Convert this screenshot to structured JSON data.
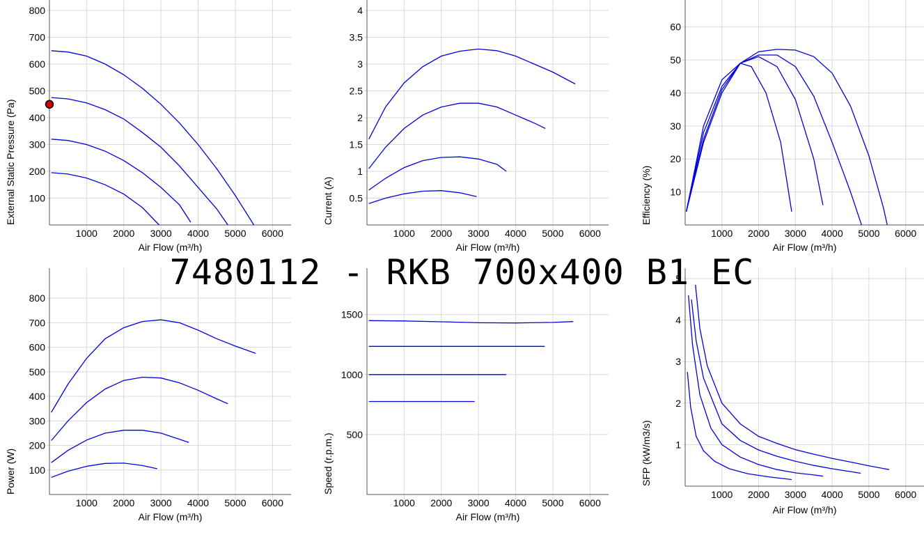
{
  "title": "7480112 - RKB 700x400 B1 EC",
  "colors": {
    "curve": "#0000dd",
    "grid": "#d9d9d9",
    "point_fill": "#cc0000"
  },
  "chart_data": [
    {
      "type": "line",
      "xlabel": "Air Flow (m³/h)",
      "ylabel": "External Static Pressure (Pa)",
      "xlim": [
        0,
        6500
      ],
      "ylim": [
        0,
        800
      ],
      "xticks": [
        1000,
        2000,
        3000,
        4000,
        5000,
        6000
      ],
      "yticks": [
        100,
        200,
        300,
        400,
        500,
        600,
        700,
        800
      ],
      "grid": true,
      "operating_point": {
        "x": 0,
        "y": 450
      },
      "series": [
        {
          "points": [
            [
              50,
              650
            ],
            [
              500,
              645
            ],
            [
              1000,
              630
            ],
            [
              1500,
              600
            ],
            [
              2000,
              560
            ],
            [
              2500,
              510
            ],
            [
              3000,
              450
            ],
            [
              3500,
              380
            ],
            [
              4000,
              300
            ],
            [
              4500,
              210
            ],
            [
              5000,
              110
            ],
            [
              5500,
              0
            ]
          ]
        },
        {
          "points": [
            [
              50,
              475
            ],
            [
              500,
              470
            ],
            [
              1000,
              455
            ],
            [
              1500,
              430
            ],
            [
              2000,
              395
            ],
            [
              2500,
              345
            ],
            [
              3000,
              290
            ],
            [
              3500,
              220
            ],
            [
              4000,
              140
            ],
            [
              4500,
              60
            ],
            [
              4800,
              0
            ]
          ]
        },
        {
          "points": [
            [
              50,
              320
            ],
            [
              500,
              315
            ],
            [
              1000,
              300
            ],
            [
              1500,
              275
            ],
            [
              2000,
              240
            ],
            [
              2500,
              195
            ],
            [
              3000,
              140
            ],
            [
              3500,
              75
            ],
            [
              3800,
              10
            ]
          ]
        },
        {
          "points": [
            [
              50,
              195
            ],
            [
              500,
              190
            ],
            [
              1000,
              175
            ],
            [
              1500,
              150
            ],
            [
              2000,
              115
            ],
            [
              2500,
              65
            ],
            [
              2950,
              0
            ]
          ]
        }
      ]
    },
    {
      "type": "line",
      "xlabel": "Air Flow (m³/h)",
      "ylabel": "Current (A)",
      "xlim": [
        0,
        6500
      ],
      "ylim": [
        0,
        4
      ],
      "xticks": [
        1000,
        2000,
        3000,
        4000,
        5000,
        6000
      ],
      "yticks": [
        0.5,
        1,
        1.5,
        2,
        2.5,
        3,
        3.5,
        4
      ],
      "grid": true,
      "series": [
        {
          "points": [
            [
              50,
              1.6
            ],
            [
              500,
              2.2
            ],
            [
              1000,
              2.65
            ],
            [
              1500,
              2.95
            ],
            [
              2000,
              3.15
            ],
            [
              2500,
              3.24
            ],
            [
              3000,
              3.28
            ],
            [
              3500,
              3.25
            ],
            [
              4000,
              3.15
            ],
            [
              4500,
              3.0
            ],
            [
              5000,
              2.85
            ],
            [
              5600,
              2.63
            ]
          ]
        },
        {
          "points": [
            [
              50,
              1.05
            ],
            [
              500,
              1.45
            ],
            [
              1000,
              1.8
            ],
            [
              1500,
              2.05
            ],
            [
              2000,
              2.2
            ],
            [
              2500,
              2.27
            ],
            [
              3000,
              2.27
            ],
            [
              3500,
              2.2
            ],
            [
              4000,
              2.05
            ],
            [
              4500,
              1.9
            ],
            [
              4800,
              1.8
            ]
          ]
        },
        {
          "points": [
            [
              50,
              0.65
            ],
            [
              500,
              0.87
            ],
            [
              1000,
              1.07
            ],
            [
              1500,
              1.2
            ],
            [
              2000,
              1.26
            ],
            [
              2500,
              1.27
            ],
            [
              3000,
              1.23
            ],
            [
              3500,
              1.13
            ],
            [
              3750,
              1.0
            ]
          ]
        },
        {
          "points": [
            [
              50,
              0.4
            ],
            [
              500,
              0.5
            ],
            [
              1000,
              0.58
            ],
            [
              1500,
              0.63
            ],
            [
              2000,
              0.64
            ],
            [
              2500,
              0.6
            ],
            [
              2950,
              0.53
            ]
          ]
        }
      ]
    },
    {
      "type": "line",
      "xlabel": "Air Flow (m³/h)",
      "ylabel": "Efficiency (%)",
      "xlim": [
        0,
        6500
      ],
      "ylim": [
        0,
        65
      ],
      "xticks": [
        1000,
        2000,
        3000,
        4000,
        5000,
        6000
      ],
      "yticks": [
        10,
        20,
        30,
        40,
        50,
        60
      ],
      "grid": true,
      "series": [
        {
          "points": [
            [
              30,
              4
            ],
            [
              500,
              25
            ],
            [
              1000,
              40
            ],
            [
              1500,
              49
            ],
            [
              2000,
              52.5
            ],
            [
              2500,
              53.2
            ],
            [
              3000,
              53
            ],
            [
              3500,
              51
            ],
            [
              4000,
              46
            ],
            [
              4500,
              36
            ],
            [
              5000,
              21
            ],
            [
              5400,
              5
            ],
            [
              5500,
              0
            ]
          ]
        },
        {
          "points": [
            [
              30,
              4
            ],
            [
              500,
              26
            ],
            [
              1000,
              41
            ],
            [
              1500,
              49
            ],
            [
              2000,
              51.5
            ],
            [
              2500,
              51.5
            ],
            [
              3000,
              48
            ],
            [
              3500,
              39
            ],
            [
              4000,
              25
            ],
            [
              4500,
              10
            ],
            [
              4800,
              0
            ]
          ]
        },
        {
          "points": [
            [
              30,
              4
            ],
            [
              500,
              28
            ],
            [
              1000,
              42
            ],
            [
              1500,
              49
            ],
            [
              2000,
              51
            ],
            [
              2500,
              48
            ],
            [
              3000,
              38
            ],
            [
              3500,
              20
            ],
            [
              3750,
              6
            ]
          ]
        },
        {
          "points": [
            [
              30,
              4
            ],
            [
              500,
              30
            ],
            [
              1000,
              44
            ],
            [
              1500,
              49
            ],
            [
              1800,
              48
            ],
            [
              2200,
              40
            ],
            [
              2600,
              25
            ],
            [
              2900,
              4
            ]
          ]
        }
      ]
    },
    {
      "type": "line",
      "xlabel": "Air Flow (m³/h)",
      "ylabel": "Power (W)",
      "xlim": [
        0,
        6500
      ],
      "ylim": [
        0,
        880
      ],
      "xticks": [
        1000,
        2000,
        3000,
        4000,
        5000,
        6000
      ],
      "yticks": [
        100,
        200,
        300,
        400,
        500,
        600,
        700,
        800
      ],
      "grid": true,
      "series": [
        {
          "points": [
            [
              50,
              335
            ],
            [
              500,
              450
            ],
            [
              1000,
              555
            ],
            [
              1500,
              635
            ],
            [
              2000,
              680
            ],
            [
              2500,
              705
            ],
            [
              3000,
              712
            ],
            [
              3500,
              700
            ],
            [
              4000,
              670
            ],
            [
              4500,
              635
            ],
            [
              5000,
              605
            ],
            [
              5550,
              575
            ]
          ]
        },
        {
          "points": [
            [
              50,
              220
            ],
            [
              500,
              300
            ],
            [
              1000,
              375
            ],
            [
              1500,
              430
            ],
            [
              2000,
              465
            ],
            [
              2500,
              478
            ],
            [
              3000,
              475
            ],
            [
              3500,
              455
            ],
            [
              4000,
              425
            ],
            [
              4500,
              390
            ],
            [
              4800,
              370
            ]
          ]
        },
        {
          "points": [
            [
              50,
              130
            ],
            [
              500,
              180
            ],
            [
              1000,
              222
            ],
            [
              1500,
              250
            ],
            [
              2000,
              262
            ],
            [
              2500,
              262
            ],
            [
              3000,
              250
            ],
            [
              3500,
              225
            ],
            [
              3750,
              212
            ]
          ]
        },
        {
          "points": [
            [
              50,
              70
            ],
            [
              500,
              95
            ],
            [
              1000,
              115
            ],
            [
              1500,
              127
            ],
            [
              2000,
              128
            ],
            [
              2500,
              118
            ],
            [
              2900,
              105
            ]
          ]
        }
      ]
    },
    {
      "type": "line",
      "xlabel": "Air Flow (m³/h)",
      "ylabel": "Speed (r.p.m.)",
      "xlim": [
        0,
        6500
      ],
      "ylim": [
        0,
        1800
      ],
      "xticks": [
        1000,
        2000,
        3000,
        4000,
        5000,
        6000
      ],
      "yticks": [
        500,
        1000,
        1500
      ],
      "grid": true,
      "series": [
        {
          "points": [
            [
              50,
              1450
            ],
            [
              1000,
              1447
            ],
            [
              2000,
              1440
            ],
            [
              3000,
              1432
            ],
            [
              4000,
              1430
            ],
            [
              5000,
              1435
            ],
            [
              5550,
              1442
            ]
          ]
        },
        {
          "points": [
            [
              50,
              1235
            ],
            [
              4780,
              1235
            ]
          ]
        },
        {
          "points": [
            [
              50,
              1000
            ],
            [
              3750,
              1000
            ]
          ]
        },
        {
          "points": [
            [
              50,
              775
            ],
            [
              2900,
              775
            ]
          ]
        }
      ]
    },
    {
      "type": "line",
      "xlabel": "Air Flow (m³/h)",
      "ylabel": "SFP (kW/m3/s)",
      "xlim": [
        0,
        6500
      ],
      "ylim": [
        0,
        5
      ],
      "xticks": [
        1000,
        2000,
        3000,
        4000,
        5000,
        6000
      ],
      "yticks": [
        1,
        2,
        3,
        4,
        5
      ],
      "grid": true,
      "series": [
        {
          "points": [
            [
              280,
              4.85
            ],
            [
              400,
              3.8
            ],
            [
              600,
              2.9
            ],
            [
              1000,
              2.0
            ],
            [
              1500,
              1.5
            ],
            [
              2000,
              1.2
            ],
            [
              2500,
              1.03
            ],
            [
              3000,
              0.88
            ],
            [
              3500,
              0.77
            ],
            [
              4000,
              0.67
            ],
            [
              4500,
              0.58
            ],
            [
              5000,
              0.49
            ],
            [
              5550,
              0.4
            ]
          ]
        },
        {
          "points": [
            [
              170,
              4.5
            ],
            [
              300,
              3.5
            ],
            [
              500,
              2.6
            ],
            [
              1000,
              1.5
            ],
            [
              1500,
              1.1
            ],
            [
              2000,
              0.87
            ],
            [
              2500,
              0.72
            ],
            [
              3000,
              0.6
            ],
            [
              3500,
              0.5
            ],
            [
              4000,
              0.42
            ],
            [
              4500,
              0.35
            ],
            [
              4780,
              0.31
            ]
          ]
        },
        {
          "points": [
            [
              90,
              4.6
            ],
            [
              200,
              3.4
            ],
            [
              400,
              2.2
            ],
            [
              700,
              1.4
            ],
            [
              1000,
              1.0
            ],
            [
              1500,
              0.7
            ],
            [
              2000,
              0.52
            ],
            [
              2500,
              0.4
            ],
            [
              3000,
              0.32
            ],
            [
              3500,
              0.27
            ],
            [
              3750,
              0.24
            ]
          ]
        },
        {
          "points": [
            [
              60,
              2.75
            ],
            [
              150,
              1.9
            ],
            [
              300,
              1.2
            ],
            [
              500,
              0.85
            ],
            [
              800,
              0.6
            ],
            [
              1200,
              0.42
            ],
            [
              1700,
              0.3
            ],
            [
              2300,
              0.22
            ],
            [
              2900,
              0.16
            ]
          ]
        }
      ]
    }
  ]
}
